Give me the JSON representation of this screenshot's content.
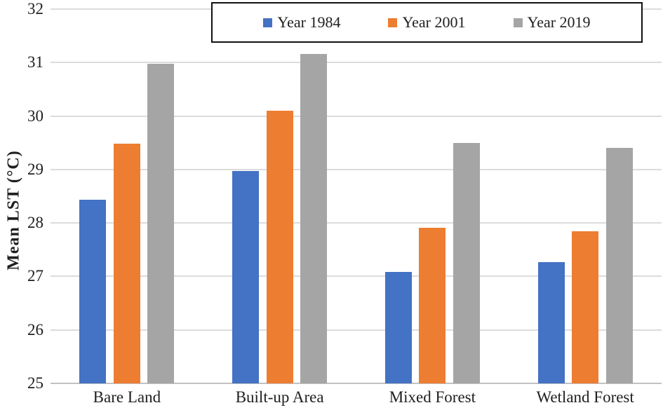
{
  "chart_data": {
    "type": "bar",
    "title": "",
    "xlabel": "",
    "ylabel": "Mean LST (°C)",
    "ylim": [
      25,
      32
    ],
    "ytick_step": 1,
    "ytick_labels": [
      "25",
      "26",
      "27",
      "28",
      "29",
      "30",
      "31",
      "32"
    ],
    "grid": "horizontal",
    "legend_position": "top-center-boxed",
    "categories": [
      "Bare Land",
      "Built-up Area",
      "Mixed Forest",
      "Wetland Forest"
    ],
    "series": [
      {
        "name": "Year 1984",
        "color": "#4472C4",
        "values": [
          28.43,
          28.97,
          27.09,
          27.27
        ]
      },
      {
        "name": "Year 2001",
        "color": "#ED7D31",
        "values": [
          29.48,
          30.1,
          27.91,
          27.85
        ]
      },
      {
        "name": "Year 2019",
        "color": "#A5A5A5",
        "values": [
          30.98,
          31.16,
          29.49,
          29.4
        ]
      }
    ]
  }
}
